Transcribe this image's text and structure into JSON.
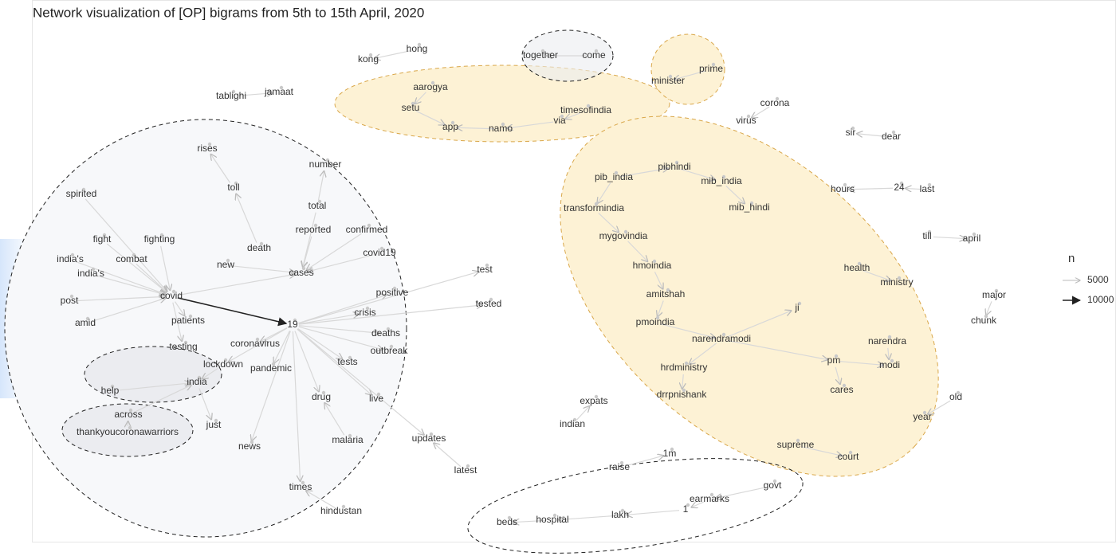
{
  "title": "Network visualization of [OP] bigrams from 5th to 15th April, 2020",
  "legend": {
    "title": "n",
    "entries": [
      "5000",
      "10000"
    ]
  },
  "nodes": [
    {
      "label": "kong"
    },
    {
      "label": "hong"
    },
    {
      "label": "together"
    },
    {
      "label": "come"
    },
    {
      "label": "prime"
    },
    {
      "label": "minister"
    },
    {
      "label": "tablighi"
    },
    {
      "label": "jamaat"
    },
    {
      "label": "aarogya"
    },
    {
      "label": "setu"
    },
    {
      "label": "timesofindia"
    },
    {
      "label": "via"
    },
    {
      "label": "namo"
    },
    {
      "label": "app"
    },
    {
      "label": "corona"
    },
    {
      "label": "virus"
    },
    {
      "label": "sir"
    },
    {
      "label": "dear"
    },
    {
      "label": "rises"
    },
    {
      "label": "number"
    },
    {
      "label": "toll"
    },
    {
      "label": "pibhindi"
    },
    {
      "label": "pib_india"
    },
    {
      "label": "mib_india"
    },
    {
      "label": "spirited"
    },
    {
      "label": "total"
    },
    {
      "label": "hours"
    },
    {
      "label": "24"
    },
    {
      "label": "last"
    },
    {
      "label": "mib_hindi"
    },
    {
      "label": "transformindia"
    },
    {
      "label": "reported"
    },
    {
      "label": "confirmed"
    },
    {
      "label": "fight"
    },
    {
      "label": "fighting"
    },
    {
      "label": "mygovindia"
    },
    {
      "label": "till"
    },
    {
      "label": "april"
    },
    {
      "label": "india's"
    },
    {
      "label": "combat"
    },
    {
      "label": "covid19"
    },
    {
      "label": "death"
    },
    {
      "label": "new"
    },
    {
      "label": "cases"
    },
    {
      "label": "hmoindia"
    },
    {
      "label": "health"
    },
    {
      "label": "india's"
    },
    {
      "label": "test"
    },
    {
      "label": "ministry"
    },
    {
      "label": "positive"
    },
    {
      "label": "covid"
    },
    {
      "label": "post"
    },
    {
      "label": "tested"
    },
    {
      "label": "19"
    },
    {
      "label": "amitshah"
    },
    {
      "label": "crisis"
    },
    {
      "label": "major"
    },
    {
      "label": "chunk"
    },
    {
      "label": "amid"
    },
    {
      "label": "patients"
    },
    {
      "label": "deaths"
    },
    {
      "label": "pmoindia"
    },
    {
      "label": "ji"
    },
    {
      "label": "narendramodi"
    },
    {
      "label": "testing"
    },
    {
      "label": "coronavirus"
    },
    {
      "label": "outbreak"
    },
    {
      "label": "lockdown"
    },
    {
      "label": "pandemic"
    },
    {
      "label": "tests"
    },
    {
      "label": "pm"
    },
    {
      "label": "narendra"
    },
    {
      "label": "modi"
    },
    {
      "label": "india"
    },
    {
      "label": "hrdministry"
    },
    {
      "label": "help"
    },
    {
      "label": "cares"
    },
    {
      "label": "drrpnishank"
    },
    {
      "label": "live"
    },
    {
      "label": "drug"
    },
    {
      "label": "expats"
    },
    {
      "label": "old"
    },
    {
      "label": "indian"
    },
    {
      "label": "year"
    },
    {
      "label": "across"
    },
    {
      "label": "thankyoucoronawarriors"
    },
    {
      "label": "just"
    },
    {
      "label": "updates"
    },
    {
      "label": "malaria"
    },
    {
      "label": "supreme"
    },
    {
      "label": "court"
    },
    {
      "label": "news"
    },
    {
      "label": "latest"
    },
    {
      "label": "1m"
    },
    {
      "label": "raise"
    },
    {
      "label": "govt"
    },
    {
      "label": "earmarks"
    },
    {
      "label": "times"
    },
    {
      "label": "1"
    },
    {
      "label": "lakh"
    },
    {
      "label": "hospital"
    },
    {
      "label": "beds"
    },
    {
      "label": "hindustan"
    }
  ]
}
